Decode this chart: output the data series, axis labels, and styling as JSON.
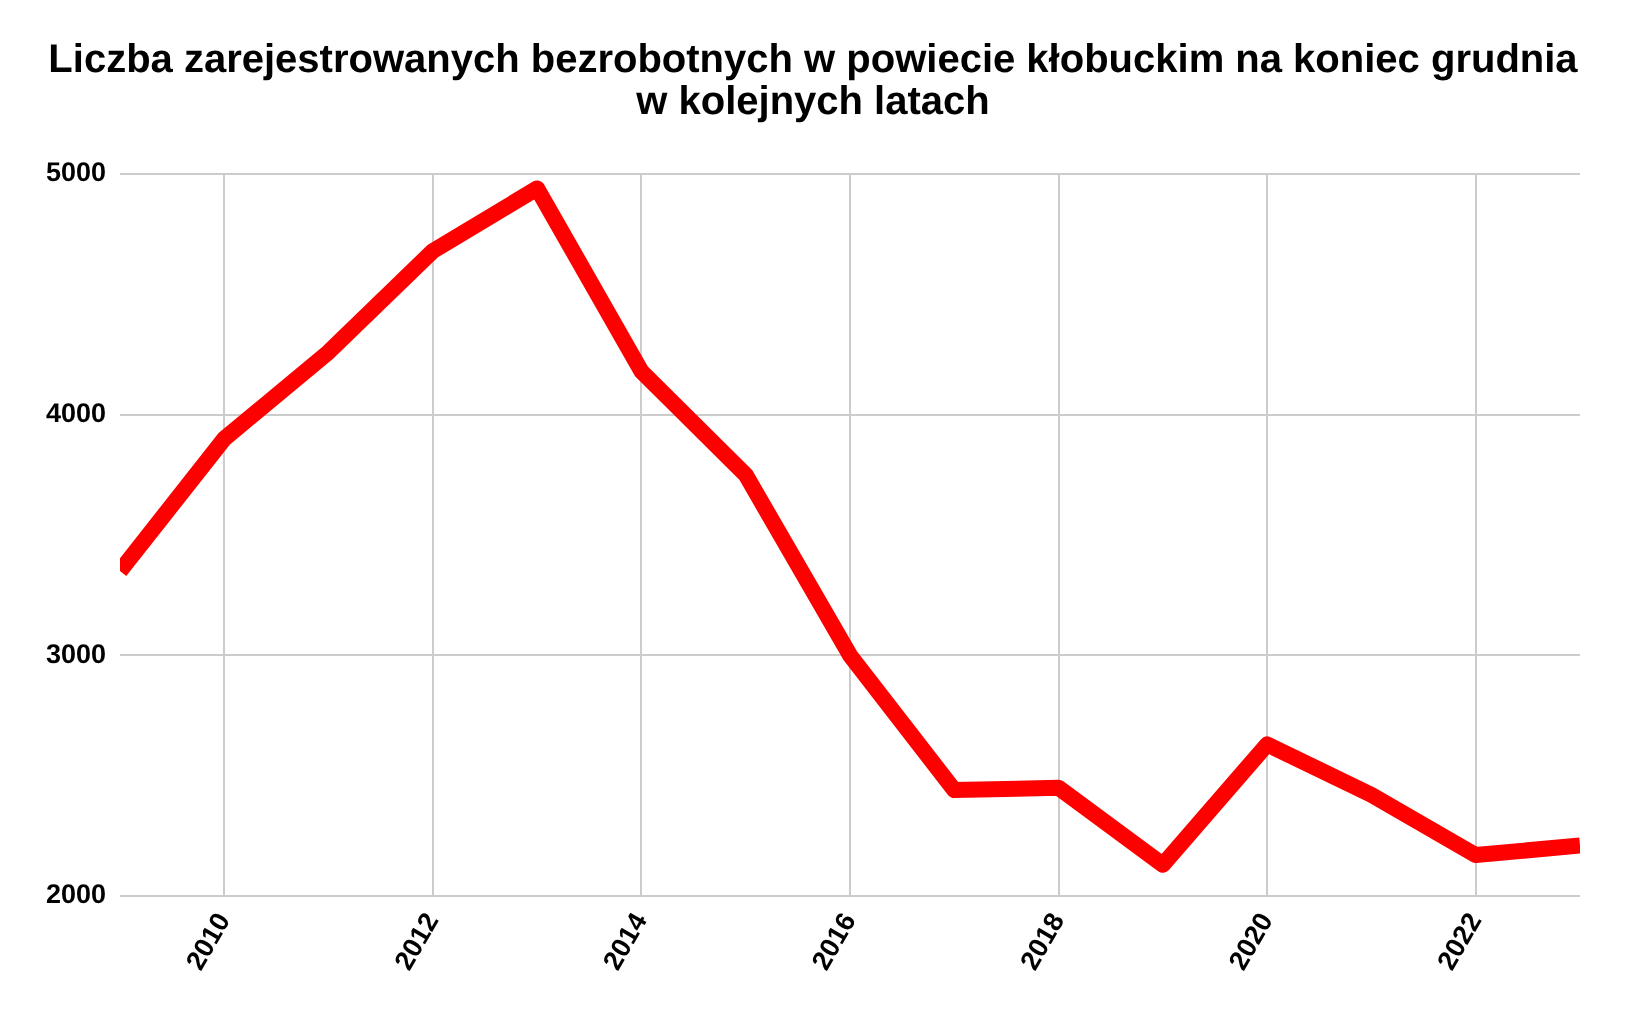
{
  "chart_data": {
    "type": "line",
    "title": "Liczba zarejestrowanych bezrobotnych w powiecie kłobuckim na koniec grudnia w kolejnych latach",
    "x": [
      2009,
      2010,
      2011,
      2012,
      2013,
      2014,
      2015,
      2016,
      2017,
      2018,
      2019,
      2020,
      2021,
      2022,
      2023
    ],
    "series": [
      {
        "color": "#ff0000",
        "values": [
          3350,
          3900,
          4260,
          4680,
          4940,
          4180,
          3750,
          3000,
          2440,
          2450,
          2130,
          2630,
          2420,
          2170,
          2210
        ]
      }
    ],
    "xlim": [
      2009,
      2023
    ],
    "xticks": [
      2010,
      2012,
      2014,
      2016,
      2018,
      2020,
      2022
    ],
    "ylim": [
      2000,
      5000
    ],
    "yticks": [
      2000,
      3000,
      4000,
      5000
    ],
    "grid": true,
    "legend": false,
    "marker": "none",
    "line_style": "solid"
  }
}
